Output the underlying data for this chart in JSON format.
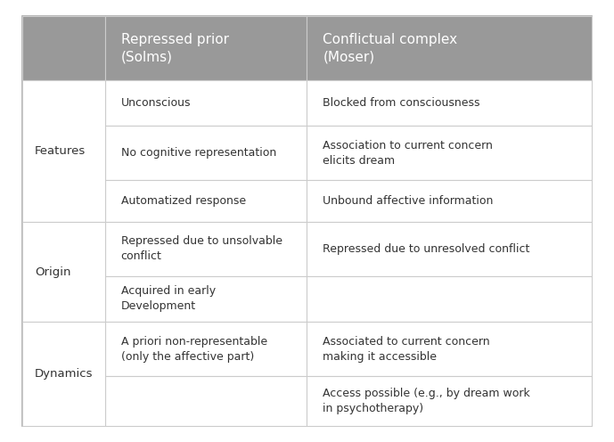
{
  "header_bg": "#999999",
  "header_text_color": "#ffffff",
  "cell_bg": "#ffffff",
  "outer_border_color": "#aaaaaa",
  "inner_border_color": "#cccccc",
  "text_color": "#333333",
  "fig_bg": "#ffffff",
  "col0_header": "",
  "col1_header": "Repressed prior\n(Solms)",
  "col2_header": "Conflictual complex\n(Moser)",
  "rows": [
    {
      "category": "Features",
      "col1": "Unconscious",
      "col2": "Blocked from consciousness"
    },
    {
      "category": "",
      "col1": "No cognitive representation",
      "col2": "Association to current concern\nelicits dream"
    },
    {
      "category": "",
      "col1": "Automatized response",
      "col2": "Unbound affective information"
    },
    {
      "category": "Origin",
      "col1": "Repressed due to unsolvable\nconflict",
      "col2": "Repressed due to unresolved conflict"
    },
    {
      "category": "",
      "col1": "Acquired in early\nDevelopment",
      "col2": ""
    },
    {
      "category": "Dynamics",
      "col1": "A priori non-representable\n(only the affective part)",
      "col2": "Associated to current concern\nmaking it accessible"
    },
    {
      "category": "",
      "col1": "",
      "col2": "Access possible (e.g., by dream work\nin psychotherapy)"
    }
  ],
  "font_size": 9.0,
  "header_font_size": 11.0,
  "category_font_size": 9.5
}
